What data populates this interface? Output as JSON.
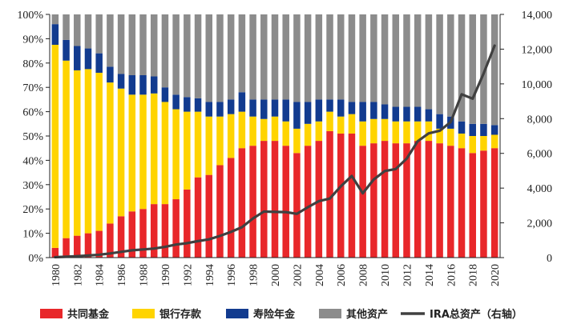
{
  "chart_data": {
    "type": "bar",
    "stacked": true,
    "categories": [
      "1980",
      "1981",
      "1982",
      "1983",
      "1984",
      "1985",
      "1986",
      "1987",
      "1988",
      "1989",
      "1990",
      "1991",
      "1992",
      "1993",
      "1994",
      "1995",
      "1996",
      "1997",
      "1998",
      "1999",
      "2000",
      "2001",
      "2002",
      "2003",
      "2004",
      "2005",
      "2006",
      "2007",
      "2008",
      "2009",
      "2010",
      "2011",
      "2012",
      "2013",
      "2014",
      "2015",
      "2016",
      "2017",
      "2018",
      "2019",
      "2020"
    ],
    "x_tick_labels": [
      "1980",
      "1982",
      "1984",
      "1986",
      "1988",
      "1990",
      "1992",
      "1994",
      "1996",
      "1998",
      "2000",
      "2002",
      "2004",
      "2006",
      "2008",
      "2010",
      "2012",
      "2014",
      "2016",
      "2018",
      "2020"
    ],
    "series": [
      {
        "name": "共同基金",
        "color": "#e8272a",
        "values": [
          4,
          8,
          9,
          10,
          11,
          14,
          17,
          19,
          20,
          22,
          22,
          24,
          28,
          33,
          34,
          38,
          41,
          45,
          46,
          48,
          48,
          46,
          43,
          46,
          48,
          52,
          51,
          51,
          46,
          47,
          48,
          47,
          47,
          48,
          48,
          47,
          46,
          45,
          43,
          44,
          45
        ]
      },
      {
        "name": "银行存款",
        "color": "#ffd400",
        "values": [
          83.5,
          73,
          68,
          67.5,
          65,
          58,
          52.5,
          48,
          47,
          45.5,
          42,
          37,
          32,
          27,
          24,
          20,
          18,
          15,
          12,
          9,
          10,
          10,
          10,
          9,
          8,
          8,
          7,
          8,
          10,
          10,
          9,
          9,
          9,
          8,
          8,
          6,
          7,
          6,
          7,
          6,
          5.5
        ]
      },
      {
        "name": "寿险年金",
        "color": "#123b8f",
        "values": [
          8.5,
          8.5,
          10,
          8.5,
          8,
          6.5,
          6,
          8,
          8,
          7,
          6,
          6,
          6,
          5.5,
          6,
          6,
          6,
          8,
          7,
          8,
          7,
          9,
          11,
          9,
          9,
          5,
          7,
          5,
          8,
          7,
          6,
          6,
          6,
          6,
          5,
          6,
          5,
          5,
          5,
          5,
          4
        ]
      },
      {
        "name": "其他资产",
        "color": "#8c8c8c",
        "values": [
          4,
          10.5,
          13,
          14,
          16,
          21.5,
          24.5,
          25,
          25,
          25.5,
          30,
          33,
          34,
          34.5,
          36,
          36,
          35,
          32,
          35,
          35,
          35,
          35,
          36,
          36,
          35,
          35,
          35,
          36,
          36,
          36,
          37,
          38,
          38,
          38,
          39,
          41,
          42,
          44,
          45,
          45,
          45.5
        ]
      }
    ],
    "line_series": {
      "name": "IRA总资产（右轴）",
      "color": "#404040",
      "axis": "right",
      "values": [
        25,
        50,
        80,
        120,
        165,
        240,
        330,
        420,
        470,
        520,
        620,
        750,
        830,
        950,
        1050,
        1250,
        1480,
        1750,
        2250,
        2650,
        2630,
        2620,
        2520,
        2900,
        3250,
        3400,
        4100,
        4700,
        3700,
        4500,
        4980,
        5100,
        5700,
        6700,
        7150,
        7300,
        7800,
        9400,
        9150,
        10600,
        12200
      ]
    },
    "ylim_left": [
      0,
      100
    ],
    "ylim_right": [
      0,
      14000
    ],
    "y_left_ticks": [
      "0%",
      "10%",
      "20%",
      "30%",
      "40%",
      "50%",
      "60%",
      "70%",
      "80%",
      "90%",
      "100%"
    ],
    "y_right_ticks": [
      "0",
      "2,000",
      "4,000",
      "6,000",
      "8,000",
      "10,000",
      "12,000",
      "14,000"
    ],
    "legend_position": "bottom",
    "grid": false
  }
}
